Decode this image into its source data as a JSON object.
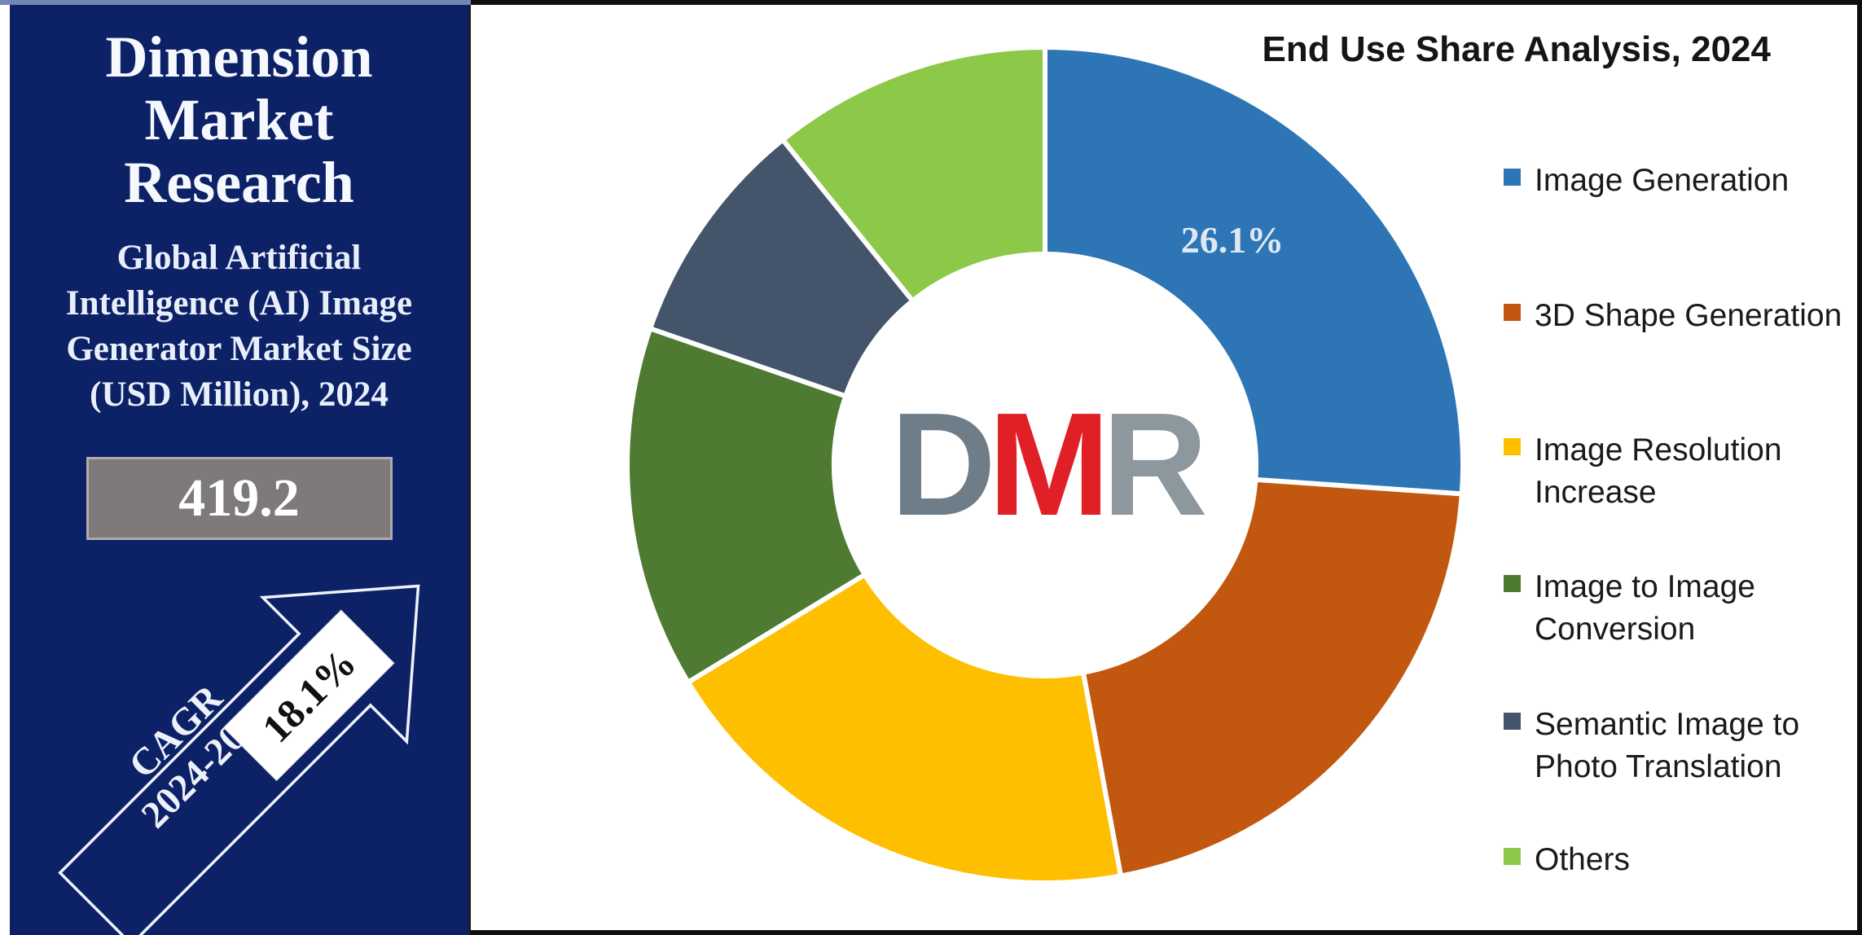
{
  "sidebar": {
    "brand": "Dimension Market Research",
    "subtitle": "Global Artificial Intelligence (AI) Image Generator Market Size (USD Million), 2024",
    "market_size_value": "419.2",
    "cagr": {
      "label": "CAGR",
      "period": "2024-2033",
      "value": "18.1%"
    }
  },
  "chart": {
    "logo_letters": [
      {
        "char": "D",
        "color": "#6F7D89"
      },
      {
        "char": "M",
        "color": "#E01F26"
      },
      {
        "char": "R",
        "color": "#8D979E"
      }
    ]
  },
  "chart_data": {
    "type": "pie",
    "subtype": "donut",
    "title": "End Use Share Analysis, 2024",
    "hole_ratio": 0.505,
    "legend_position": "right",
    "start_angle_deg": 0,
    "direction": "clockwise",
    "gap_color": "#FFFFFF",
    "series": [
      {
        "name": "Image Generation",
        "value": 26.1,
        "color": "#2E75B6",
        "label": "26.1%"
      },
      {
        "name": "3D Shape Generation",
        "value": 21.0,
        "color": "#C2570F"
      },
      {
        "name": "Image Resolution Increase",
        "value": 19.2,
        "color": "#FEBF01"
      },
      {
        "name": "Image to Image Conversion",
        "value": 14.0,
        "color": "#4E7A31"
      },
      {
        "name": "Semantic Image to Photo Translation",
        "value": 8.9,
        "color": "#44546A"
      },
      {
        "name": "Others",
        "value": 10.8,
        "color": "#8CC948"
      }
    ]
  }
}
